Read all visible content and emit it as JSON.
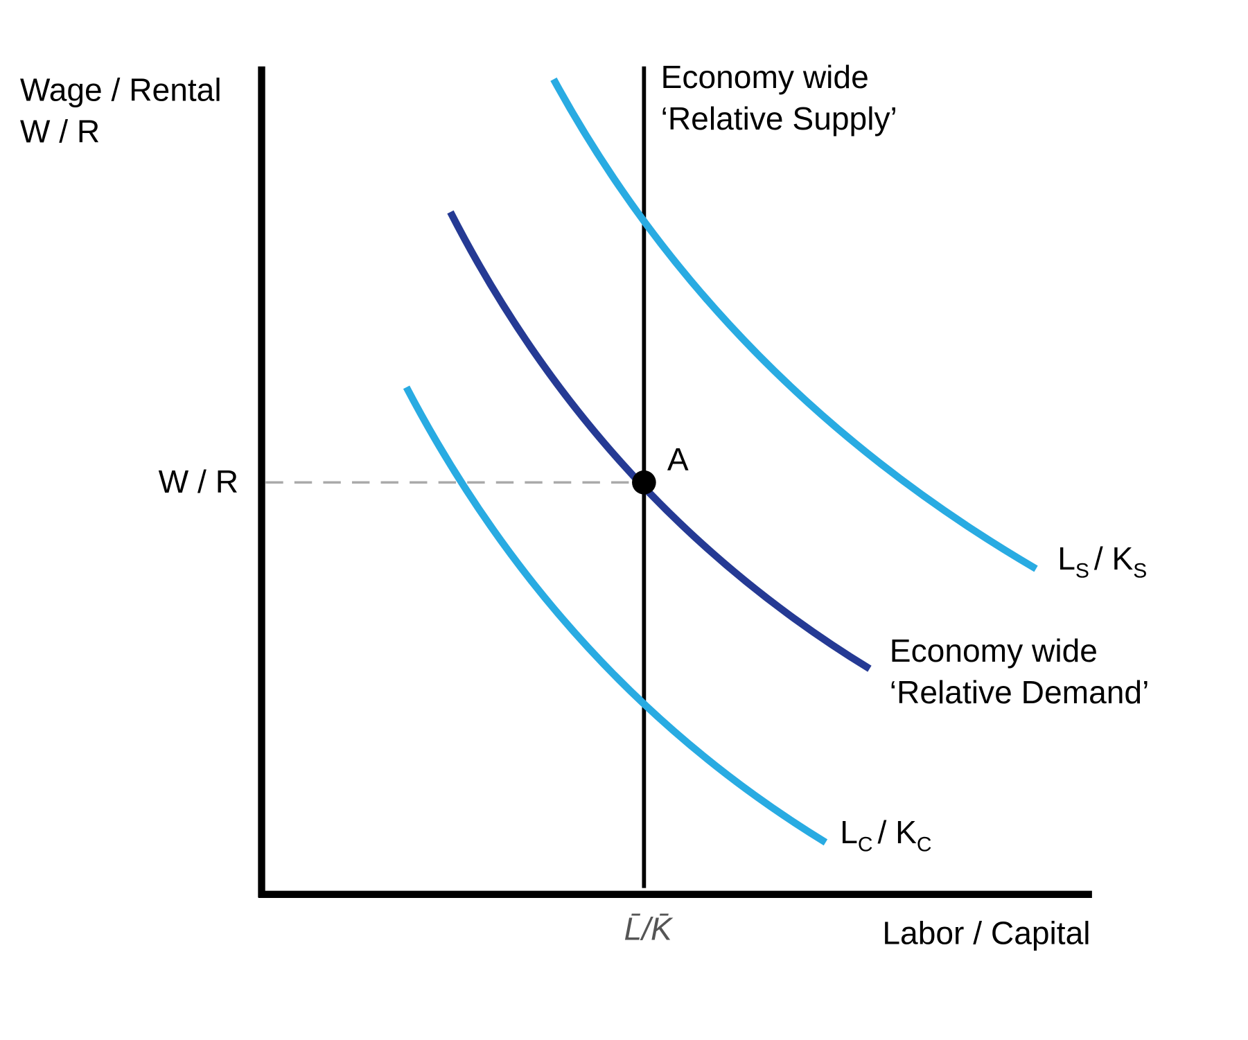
{
  "y_axis_label": [
    "Wage / Rental",
    "W / R"
  ],
  "y_tick_label": "W / R",
  "x_axis_label": "Labor / Capital",
  "x_tick_label": "L̄/K̄",
  "point_label": "A",
  "supply_label": [
    "Economy wide",
    "‘Relative Supply’"
  ],
  "demand_label": [
    "Economy wide",
    "‘Relative Demand’"
  ],
  "curve_s_label": [
    {
      "main": "L",
      "sub": "S"
    },
    {
      "main": "/ K",
      "sub": "S"
    }
  ],
  "curve_c_label": [
    {
      "main": "L",
      "sub": "C"
    },
    {
      "main": "/ K",
      "sub": "C"
    }
  ]
}
